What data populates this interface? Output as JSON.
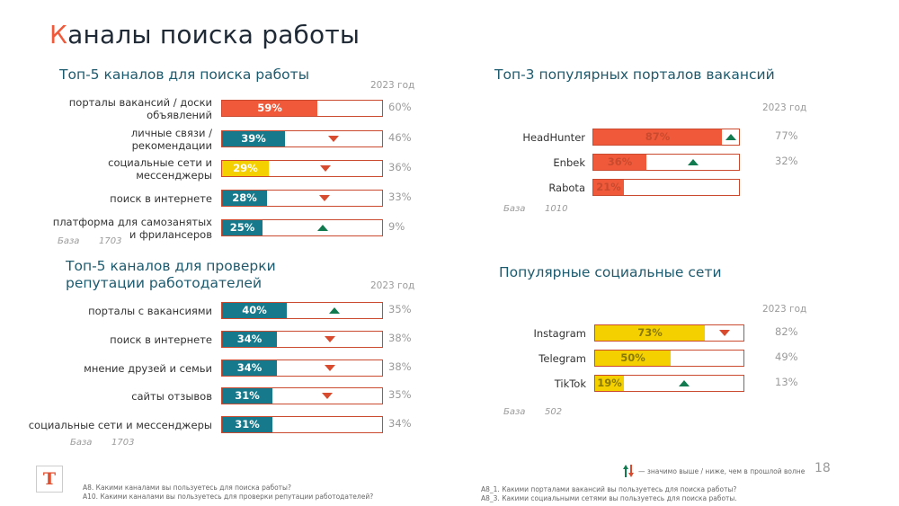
{
  "title_first": "К",
  "title_rest": "аналы поиска работы",
  "page_number": "18",
  "colors": {
    "orange": "#f05a3a",
    "teal": "#17798c",
    "yellow": "#f4d000",
    "down": "#d84b2e",
    "up": "#127a4f"
  },
  "legend_text": "— значимо выше / ниже, чем в прошлой волне",
  "footnotes": {
    "left": [
      "A8. Какими каналами вы пользуетесь для поиска работы?",
      "A10. Какими каналами вы пользуетесь для проверки репутации работодателей?"
    ],
    "right": [
      "A8_1. Какими порталами вакансий вы пользуетесь для поиска работы?",
      "A8_3. Какими социальными сетями вы пользуетесь для поиска работы."
    ]
  },
  "chart_data": [
    {
      "type": "bar",
      "title": "Топ-5 каналов для поиска работы",
      "prev_label": "2023 год",
      "base_label": "База",
      "base_value": "1703",
      "categories": [
        "порталы вакансий / доски объявлений",
        "личные связи / рекомендации",
        "социальные сети и мессенджеры",
        "поиск в интернете",
        "платформа для самозанятых и фрилансеров"
      ],
      "label_lines": [
        [
          "порталы вакансий / доски",
          "объявлений"
        ],
        [
          "личные связи /",
          "рекомендации"
        ],
        [
          "социальные сети и",
          "мессенджеры"
        ],
        [
          "поиск в интернете"
        ],
        [
          "платформа для самозанятых",
          "и фрилансеров"
        ]
      ],
      "values": [
        59,
        39,
        29,
        28,
        25
      ],
      "value_labels": [
        "59%",
        "39%",
        "29%",
        "28%",
        "25%"
      ],
      "prev_values": [
        "60%",
        "46%",
        "36%",
        "33%",
        "9%"
      ],
      "fill_colors": [
        "#f05a3a",
        "#17798c",
        "#f4d000",
        "#17798c",
        "#17798c"
      ],
      "text_colors": [
        "#ffffff",
        "#ffffff",
        "#ffffff",
        "#ffffff",
        "#ffffff"
      ],
      "changes": [
        "",
        "down",
        "down",
        "down",
        "up"
      ],
      "xlim": [
        0,
        100
      ]
    },
    {
      "type": "bar",
      "title": "Топ-5 каналов для проверки репутации работодателей",
      "title_lines": [
        "Топ-5 каналов для проверки",
        "репутации работодателей"
      ],
      "prev_label": "2023 год",
      "base_label": "База",
      "base_value": "1703",
      "categories": [
        "порталы с вакансиями",
        "поиск в интернете",
        "мнение друзей и семьи",
        "сайты отзывов",
        "социальные сети и мессенджеры"
      ],
      "label_lines": [
        [
          "порталы с вакансиями"
        ],
        [
          "поиск в интернете"
        ],
        [
          "мнение друзей и семьи"
        ],
        [
          "сайты отзывов"
        ],
        [
          "социальные сети и мессенджеры"
        ]
      ],
      "values": [
        40,
        34,
        34,
        31,
        31
      ],
      "value_labels": [
        "40%",
        "34%",
        "34%",
        "31%",
        "31%"
      ],
      "prev_values": [
        "35%",
        "38%",
        "38%",
        "35%",
        "34%"
      ],
      "fill_colors": [
        "#17798c",
        "#17798c",
        "#17798c",
        "#17798c",
        "#17798c"
      ],
      "text_colors": [
        "#ffffff",
        "#ffffff",
        "#ffffff",
        "#ffffff",
        "#ffffff"
      ],
      "changes": [
        "up",
        "down",
        "down",
        "down",
        ""
      ],
      "xlim": [
        0,
        100
      ]
    },
    {
      "type": "bar",
      "title": "Топ-3 популярных порталов вакансий",
      "prev_label": "2023 год",
      "base_label": "База",
      "base_value": "1010",
      "categories": [
        "HeadHunter",
        "Enbek",
        "Rabota"
      ],
      "label_lines": [
        [
          "HeadHunter"
        ],
        [
          "Enbek"
        ],
        [
          "Rabota"
        ]
      ],
      "values": [
        87,
        36,
        21
      ],
      "value_labels": [
        "87%",
        "36%",
        "21%"
      ],
      "prev_values": [
        "77%",
        "32%",
        ""
      ],
      "fill_colors": [
        "#f05a3a",
        "#f05a3a",
        "#f05a3a"
      ],
      "text_colors": [
        "#c94a2f",
        "#c94a2f",
        "#c94a2f"
      ],
      "changes": [
        "up",
        "up",
        ""
      ],
      "xlim": [
        0,
        100
      ]
    },
    {
      "type": "bar",
      "title": "Популярные социальные сети",
      "prev_label": "2023 год",
      "base_label": "База",
      "base_value": "502",
      "categories": [
        "Instagram",
        "Telegram",
        "TikTok"
      ],
      "label_lines": [
        [
          "Instagram"
        ],
        [
          "Telegram"
        ],
        [
          "TikTok"
        ]
      ],
      "values": [
        73,
        50,
        19
      ],
      "value_labels": [
        "73%",
        "50%",
        "19%"
      ],
      "prev_values": [
        "82%",
        "49%",
        "13%"
      ],
      "fill_colors": [
        "#f4d000",
        "#f4d000",
        "#f4d000"
      ],
      "text_colors": [
        "#8a7a00",
        "#8a7a00",
        "#8a7a00"
      ],
      "changes": [
        "down",
        "",
        "up"
      ],
      "xlim": [
        0,
        100
      ]
    }
  ]
}
